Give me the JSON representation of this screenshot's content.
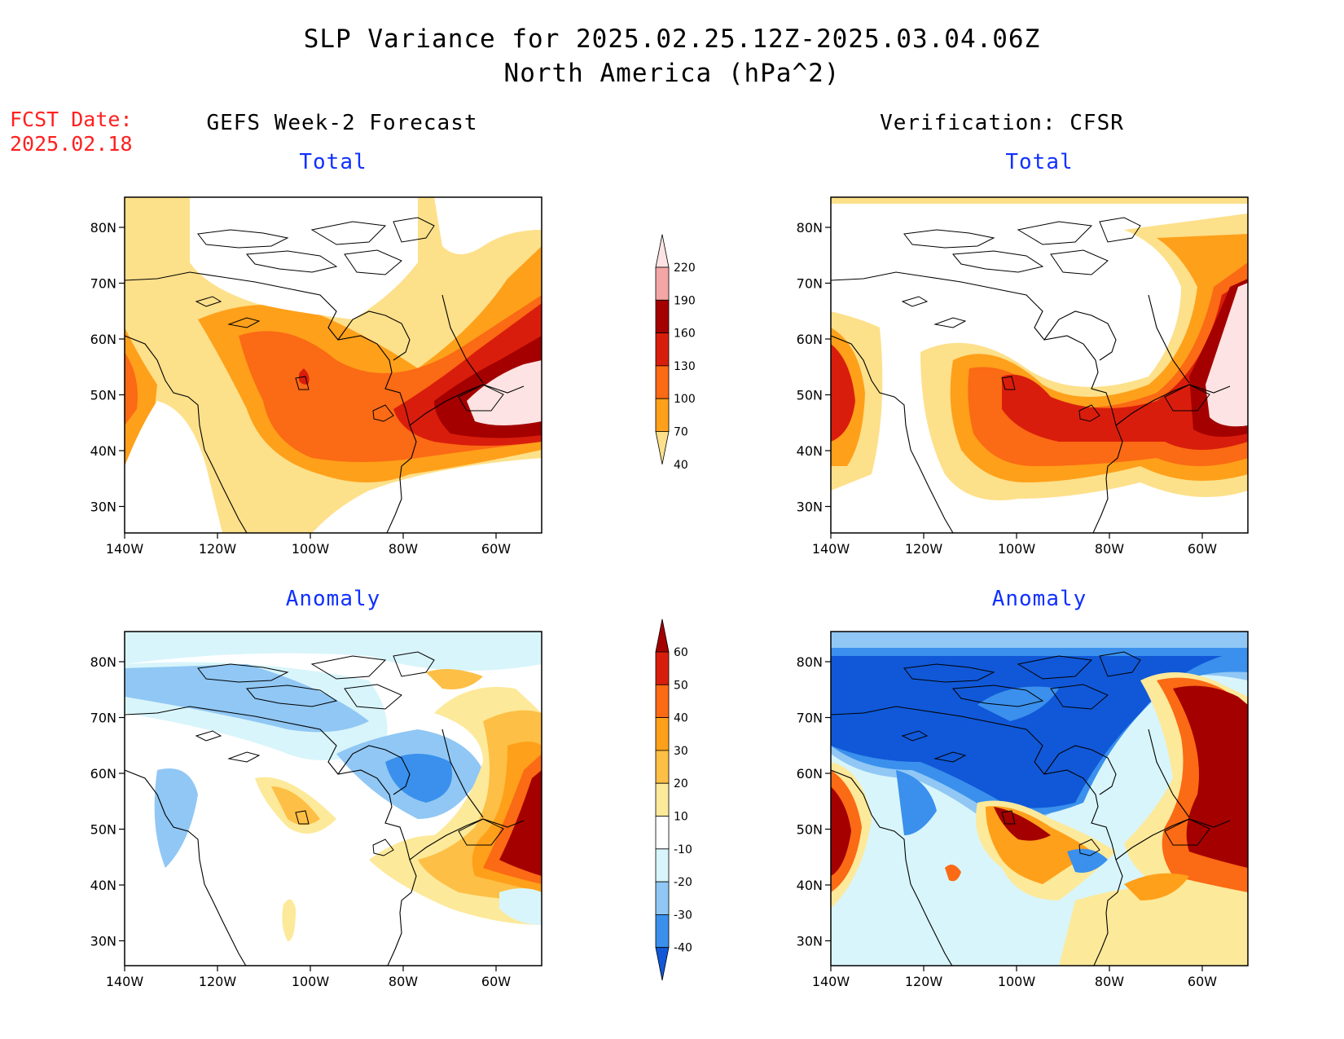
{
  "title": "SLP Variance for 2025.02.25.12Z-2025.03.04.06Z",
  "subtitle": "North America (hPa^2)",
  "fcst_label": "FCST Date:",
  "fcst_date": "2025.02.18",
  "left_header": "GEFS Week-2 Forecast",
  "right_header": "Verification: CFSR",
  "row_titles": {
    "top": "Total",
    "bottom": "Anomaly"
  },
  "axes": {
    "lon_ticks": [
      "140W",
      "120W",
      "100W",
      "80W",
      "60W"
    ],
    "lat_ticks": [
      "80N",
      "70N",
      "60N",
      "50N",
      "40N",
      "30N"
    ]
  },
  "colorbars": {
    "total": {
      "levels": [
        "40",
        "70",
        "100",
        "130",
        "160",
        "190",
        "220"
      ],
      "colors": [
        "#fde08a",
        "#ffa01a",
        "#fb6a14",
        "#d91d0c",
        "#a40000",
        "#f4a6a6",
        "#fde3e3"
      ]
    },
    "anomaly": {
      "levels": [
        "-40",
        "-30",
        "-20",
        "-10",
        "10",
        "20",
        "30",
        "40",
        "50",
        "60"
      ],
      "colors": [
        "#1058d8",
        "#3a90ec",
        "#90c7f4",
        "#d8f5fb",
        "#ffffff",
        "#fde99a",
        "#fdbf45",
        "#ffa01a",
        "#fb6a14",
        "#d91d0c",
        "#a40000"
      ]
    }
  }
}
